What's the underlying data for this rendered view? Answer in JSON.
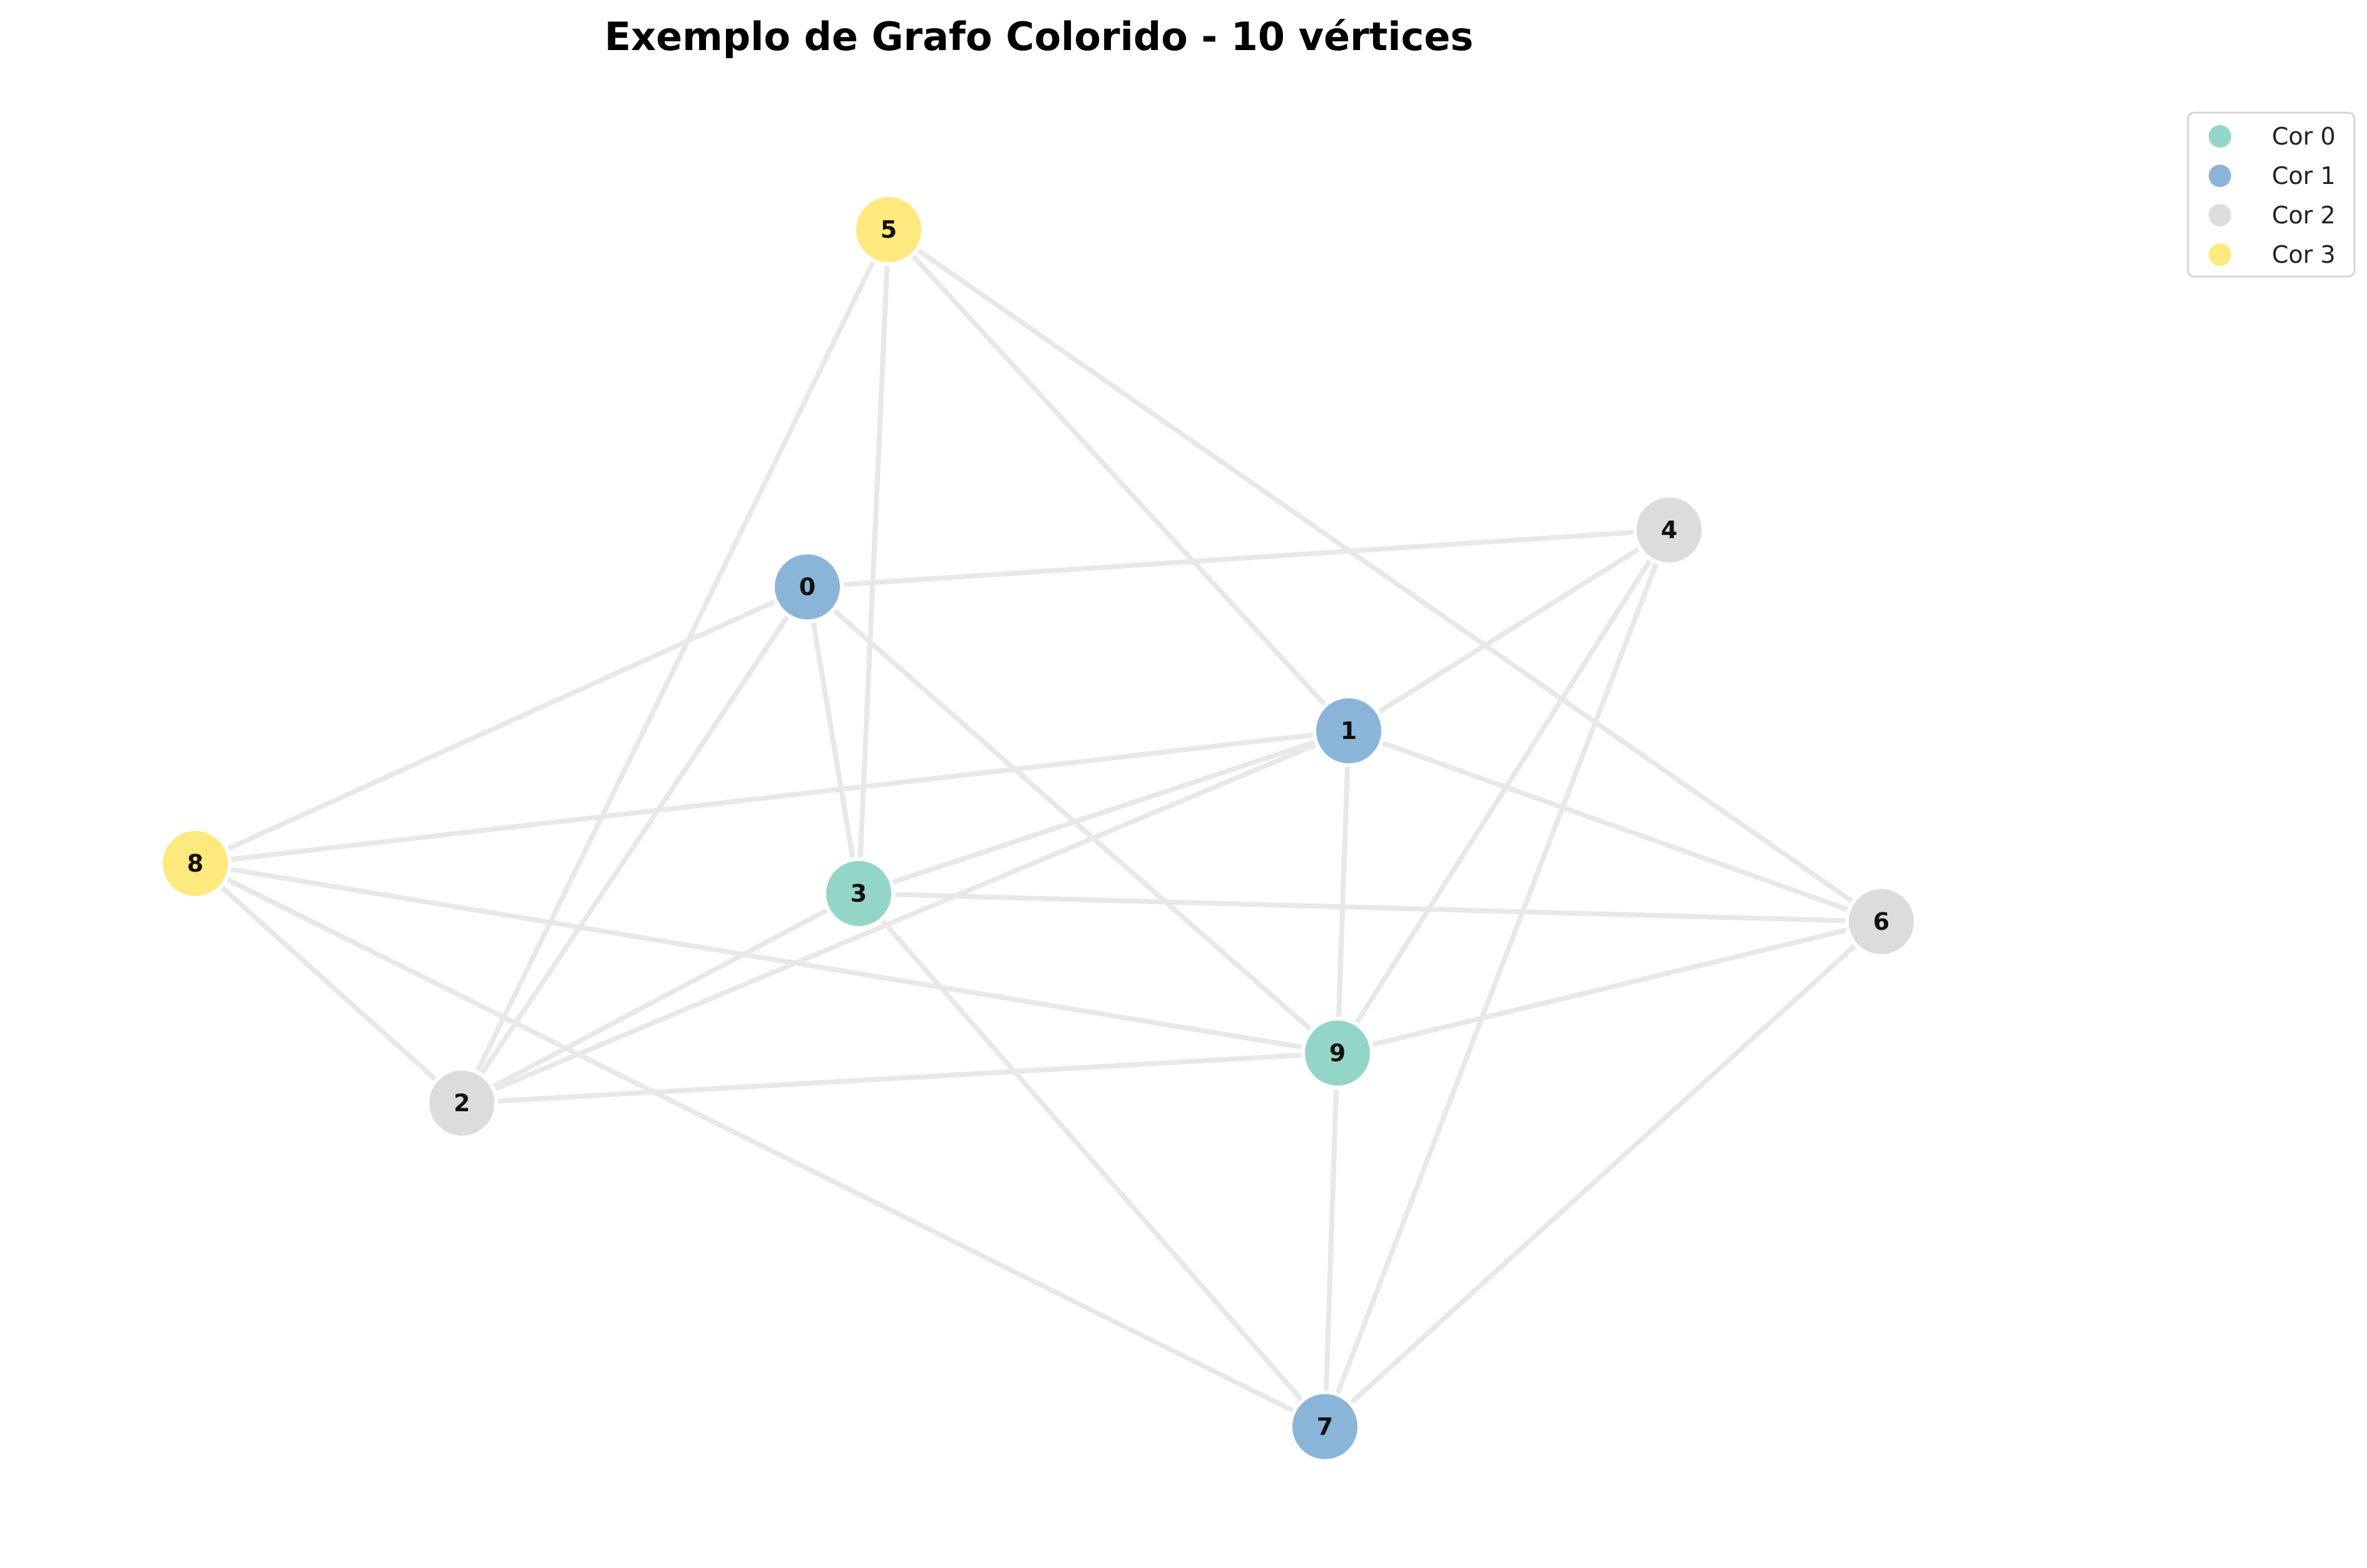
{
  "title": "Exemplo de Grafo Colorido - 10 vértices",
  "colors": [
    "#94d5c9",
    "#8bb5d8",
    "#dcdcdc",
    "#fde97d"
  ],
  "legend": [
    {
      "label": "Cor 0",
      "color": "#94d5c9"
    },
    {
      "label": "Cor 1",
      "color": "#8bb5d8"
    },
    {
      "label": "Cor 2",
      "color": "#dcdcdc"
    },
    {
      "label": "Cor 3",
      "color": "#fde97d"
    }
  ],
  "nodes": [
    {
      "id": "0",
      "color_class": 1
    },
    {
      "id": "1",
      "color_class": 1
    },
    {
      "id": "2",
      "color_class": 2
    },
    {
      "id": "3",
      "color_class": 0
    },
    {
      "id": "4",
      "color_class": 2
    },
    {
      "id": "5",
      "color_class": 3
    },
    {
      "id": "6",
      "color_class": 2
    },
    {
      "id": "7",
      "color_class": 1
    },
    {
      "id": "8",
      "color_class": 3
    },
    {
      "id": "9",
      "color_class": 0
    }
  ],
  "edges": [
    [
      "5",
      "3"
    ],
    [
      "5",
      "2"
    ],
    [
      "5",
      "1"
    ],
    [
      "5",
      "6"
    ],
    [
      "0",
      "4"
    ],
    [
      "0",
      "8"
    ],
    [
      "0",
      "2"
    ],
    [
      "0",
      "3"
    ],
    [
      "0",
      "9"
    ],
    [
      "4",
      "1"
    ],
    [
      "4",
      "9"
    ],
    [
      "4",
      "7"
    ],
    [
      "1",
      "8"
    ],
    [
      "1",
      "3"
    ],
    [
      "1",
      "2"
    ],
    [
      "1",
      "9"
    ],
    [
      "1",
      "6"
    ],
    [
      "8",
      "2"
    ],
    [
      "8",
      "9"
    ],
    [
      "8",
      "7"
    ],
    [
      "3",
      "6"
    ],
    [
      "3",
      "2"
    ],
    [
      "3",
      "7"
    ],
    [
      "6",
      "9"
    ],
    [
      "6",
      "7"
    ],
    [
      "9",
      "2"
    ],
    [
      "9",
      "7"
    ]
  ]
}
